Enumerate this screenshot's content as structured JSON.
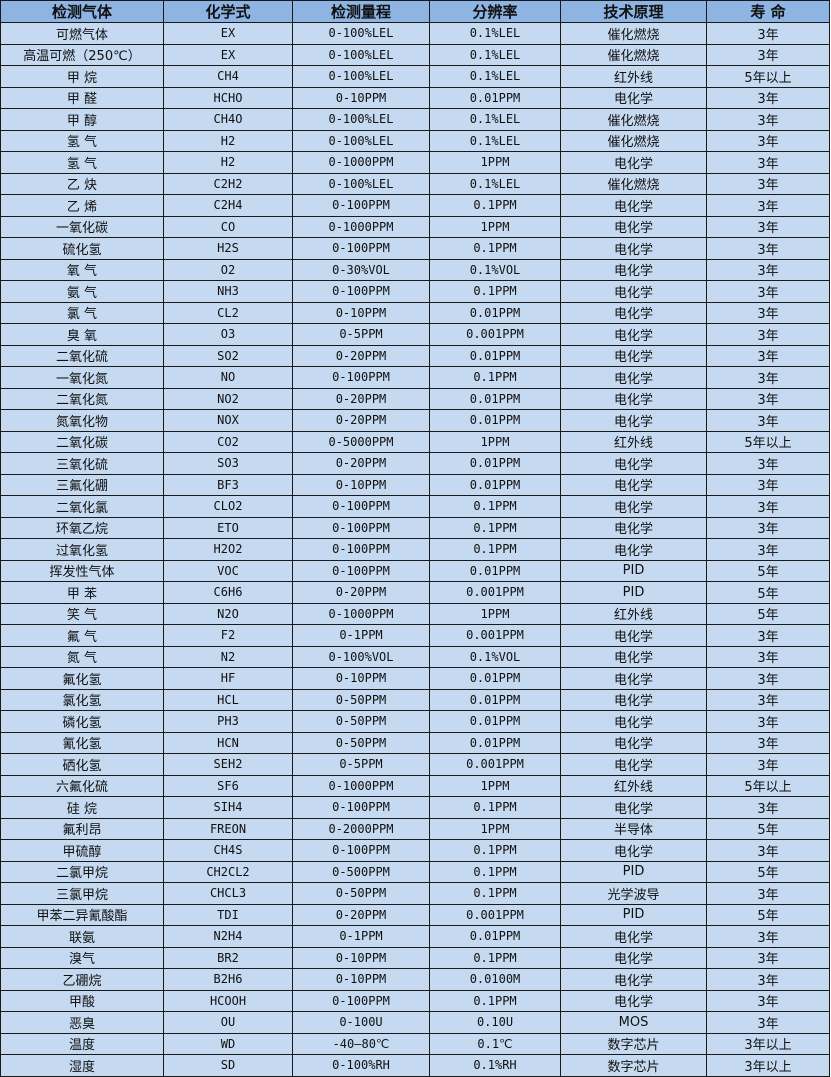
{
  "table": {
    "headers": [
      "检测气体",
      "化学式",
      "检测量程",
      "分辨率",
      "技术原理",
      "寿 命"
    ],
    "rows": [
      [
        "可燃气体",
        "EX",
        "0-100%LEL",
        "0.1%LEL",
        "催化燃烧",
        "3年"
      ],
      [
        "高温可燃（250℃）",
        "EX",
        "0-100%LEL",
        "0.1%LEL",
        "催化燃烧",
        "3年"
      ],
      [
        "甲 烷",
        "CH4",
        "0-100%LEL",
        "0.1%LEL",
        "红外线",
        "5年以上"
      ],
      [
        "甲 醛",
        "HCHO",
        "0-10PPM",
        "0.01PPM",
        "电化学",
        "3年"
      ],
      [
        "甲 醇",
        "CH4O",
        "0-100%LEL",
        "0.1%LEL",
        "催化燃烧",
        "3年"
      ],
      [
        "氢 气",
        "H2",
        "0-100%LEL",
        "0.1%LEL",
        "催化燃烧",
        "3年"
      ],
      [
        "氢 气",
        "H2",
        "0-1000PPM",
        "1PPM",
        "电化学",
        "3年"
      ],
      [
        "乙 炔",
        "C2H2",
        "0-100%LEL",
        "0.1%LEL",
        "催化燃烧",
        "3年"
      ],
      [
        "乙 烯",
        "C2H4",
        "0-100PPM",
        "0.1PPM",
        "电化学",
        "3年"
      ],
      [
        "一氧化碳",
        "CO",
        "0-1000PPM",
        "1PPM",
        "电化学",
        "3年"
      ],
      [
        "硫化氢",
        "H2S",
        "0-100PPM",
        "0.1PPM",
        "电化学",
        "3年"
      ],
      [
        "氧 气",
        "O2",
        "0-30%VOL",
        "0.1%VOL",
        "电化学",
        "3年"
      ],
      [
        "氨 气",
        "NH3",
        "0-100PPM",
        "0.1PPM",
        "电化学",
        "3年"
      ],
      [
        "氯 气",
        "CL2",
        "0-10PPM",
        "0.01PPM",
        "电化学",
        "3年"
      ],
      [
        "臭 氧",
        "O3",
        "0-5PPM",
        "0.001PPM",
        "电化学",
        "3年"
      ],
      [
        "二氧化硫",
        "SO2",
        "0-20PPM",
        "0.01PPM",
        "电化学",
        "3年"
      ],
      [
        "一氧化氮",
        "NO",
        "0-100PPM",
        "0.1PPM",
        "电化学",
        "3年"
      ],
      [
        "二氧化氮",
        "NO2",
        "0-20PPM",
        "0.01PPM",
        "电化学",
        "3年"
      ],
      [
        "氮氧化物",
        "NOX",
        "0-20PPM",
        "0.01PPM",
        "电化学",
        "3年"
      ],
      [
        "二氧化碳",
        "CO2",
        "0-5000PPM",
        "1PPM",
        "红外线",
        "5年以上"
      ],
      [
        "三氧化硫",
        "SO3",
        "0-20PPM",
        "0.01PPM",
        "电化学",
        "3年"
      ],
      [
        "三氟化硼",
        "BF3",
        "0-10PPM",
        "0.01PPM",
        "电化学",
        "3年"
      ],
      [
        "二氧化氯",
        "CLO2",
        "0-100PPM",
        "0.1PPM",
        "电化学",
        "3年"
      ],
      [
        "环氧乙烷",
        "ETO",
        "0-100PPM",
        "0.1PPM",
        "电化学",
        "3年"
      ],
      [
        "过氧化氢",
        "H2O2",
        "0-100PPM",
        "0.1PPM",
        "电化学",
        "3年"
      ],
      [
        "挥发性气体",
        "VOC",
        "0-100PPM",
        "0.01PPM",
        "PID",
        "5年"
      ],
      [
        "甲 苯",
        "C6H6",
        "0-20PPM",
        "0.001PPM",
        "PID",
        "5年"
      ],
      [
        "笑 气",
        "N2O",
        "0-1000PPM",
        "1PPM",
        "红外线",
        "5年"
      ],
      [
        "氟 气",
        "F2",
        "0-1PPM",
        "0.001PPM",
        "电化学",
        "3年"
      ],
      [
        "氮 气",
        "N2",
        "0-100%VOL",
        "0.1%VOL",
        "电化学",
        "3年"
      ],
      [
        "氟化氢",
        "HF",
        "0-10PPM",
        "0.01PPM",
        "电化学",
        "3年"
      ],
      [
        "氯化氢",
        "HCL",
        "0-50PPM",
        "0.01PPM",
        "电化学",
        "3年"
      ],
      [
        "磷化氢",
        "PH3",
        "0-50PPM",
        "0.01PPM",
        "电化学",
        "3年"
      ],
      [
        "氰化氢",
        "HCN",
        "0-50PPM",
        "0.01PPM",
        "电化学",
        "3年"
      ],
      [
        "硒化氢",
        "SEH2",
        "0-5PPM",
        "0.001PPM",
        "电化学",
        "3年"
      ],
      [
        "六氟化硫",
        "SF6",
        "0-1000PPM",
        "1PPM",
        "红外线",
        "5年以上"
      ],
      [
        "硅 烷",
        "SIH4",
        "0-100PPM",
        "0.1PPM",
        "电化学",
        "3年"
      ],
      [
        "氟利昂",
        "FREON",
        "0-2000PPM",
        "1PPM",
        "半导体",
        "5年"
      ],
      [
        "甲硫醇",
        "CH4S",
        "0-100PPM",
        "0.1PPM",
        "电化学",
        "3年"
      ],
      [
        "二氯甲烷",
        "CH2CL2",
        "0-500PPM",
        "0.1PPM",
        "PID",
        "5年"
      ],
      [
        "三氯甲烷",
        "CHCL3",
        "0-50PPM",
        "0.1PPM",
        "光学波导",
        "3年"
      ],
      [
        "甲苯二异氰酸酯",
        "TDI",
        "0-20PPM",
        "0.001PPM",
        "PID",
        "5年"
      ],
      [
        "联氨",
        "N2H4",
        "0-1PPM",
        "0.01PPM",
        "电化学",
        "3年"
      ],
      [
        "溴气",
        "BR2",
        "0-10PPM",
        "0.1PPM",
        "电化学",
        "3年"
      ],
      [
        "乙硼烷",
        "B2H6",
        "0-10PPM",
        "0.0100M",
        "电化学",
        "3年"
      ],
      [
        "甲酸",
        "HCOOH",
        "0-100PPM",
        "0.1PPM",
        "电化学",
        "3年"
      ],
      [
        "恶臭",
        "OU",
        "0-100U",
        "0.10U",
        "MOS",
        "3年"
      ],
      [
        "温度",
        "WD",
        "-40—80℃",
        "0.1℃",
        "数字芯片",
        "3年以上"
      ],
      [
        "湿度",
        "SD",
        "0-100%RH",
        "0.1%RH",
        "数字芯片",
        "3年以上"
      ]
    ]
  },
  "colors": {
    "header_bg": "#8db4e2",
    "cell_bg": "#c5d9f1",
    "border": "#1a1a1a"
  }
}
